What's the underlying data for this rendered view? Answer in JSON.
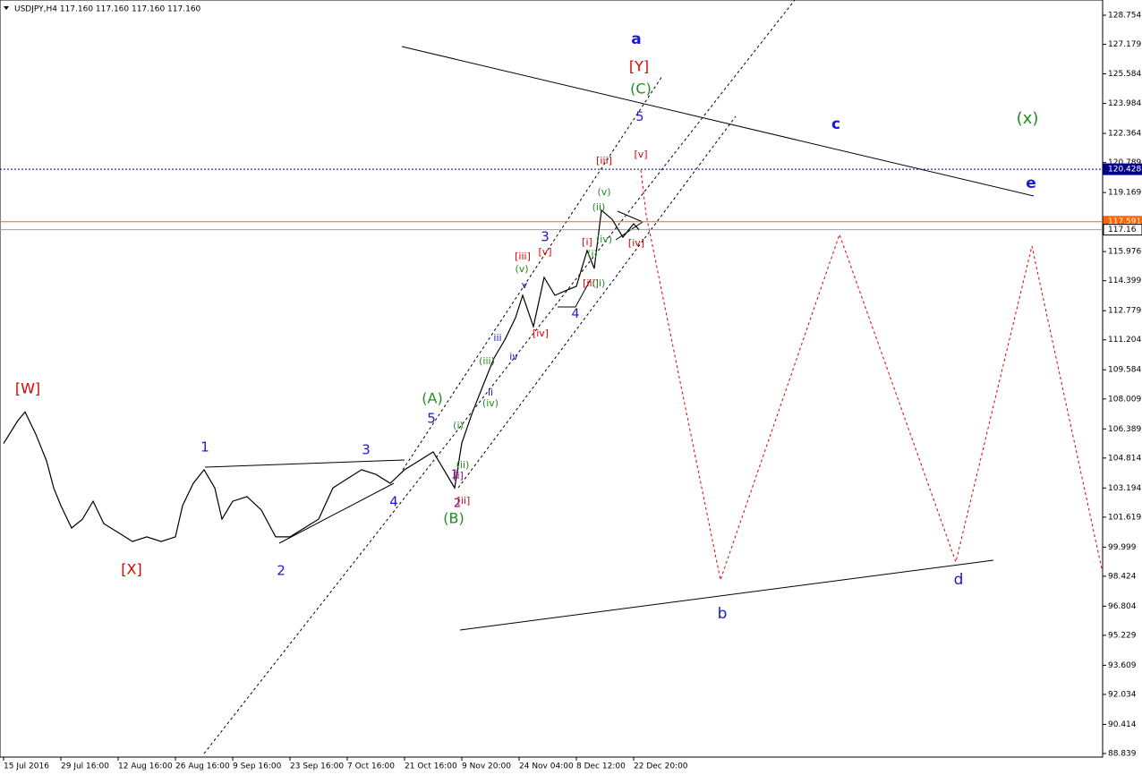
{
  "chart_data": {
    "type": "line",
    "title": "USDJPY,H4  117.160 117.160 117.160 117.160",
    "series": [
      {
        "name": "USDJPY",
        "color": "#000000",
        "x": [
          0,
          0.25,
          0.375,
          0.5625,
          0.75,
          0.875,
          1,
          1.1875,
          1.375,
          1.5625,
          1.75,
          2,
          2.25,
          2.5,
          2.75,
          3,
          3.125,
          3.3125,
          3.5,
          3.6875,
          3.8125,
          4,
          4.25,
          4.5,
          4.75,
          5,
          5.25,
          5.5,
          5.75,
          6,
          6.25,
          6.5,
          6.75,
          7,
          7.25,
          7.5,
          7.6875,
          7.875,
          8,
          8.1875,
          8.375,
          8.5625,
          8.75,
          8.9375,
          9.0625,
          9.25,
          9.4375,
          9.625,
          9.8125,
          10,
          10.1875,
          10.3125,
          10.4375,
          10.625,
          10.8125,
          11,
          11.09375
        ],
        "values": [
          105.6,
          106.84,
          107.3,
          106.1,
          104.66,
          103.2,
          102.24,
          101.03,
          101.5,
          102.48,
          101.27,
          100.79,
          100.3,
          100.55,
          100.3,
          100.55,
          102.24,
          103.45,
          104.18,
          103.2,
          101.51,
          102.48,
          102.73,
          102.0,
          100.55,
          100.55,
          101.03,
          101.51,
          103.2,
          103.69,
          104.18,
          103.93,
          103.45,
          104.18,
          104.66,
          105.15,
          104.18,
          103.2,
          105.63,
          107.3,
          108.77,
          110.22,
          111.2,
          112.4,
          113.61,
          111.92,
          114.58,
          113.61,
          113.86,
          114.1,
          116.03,
          115.06,
          118.21,
          117.72,
          116.75,
          117.48,
          117.16
        ]
      }
    ],
    "xlim": [
      -0.0625,
      19.1875
    ],
    "xticks": [
      {
        "value": 0,
        "label": "15 Jul 2016"
      },
      {
        "value": 1,
        "label": "29 Jul 16:00"
      },
      {
        "value": 2,
        "label": "12 Aug 16:00"
      },
      {
        "value": 3,
        "label": "26 Aug 16:00"
      },
      {
        "value": 4,
        "label": "9 Sep 16:00"
      },
      {
        "value": 5,
        "label": "23 Sep 16:00"
      },
      {
        "value": 6,
        "label": "7 Oct 16:00"
      },
      {
        "value": 7,
        "label": "21 Oct 16:00"
      },
      {
        "value": 8,
        "label": "9 Nov 20:00"
      },
      {
        "value": 9,
        "label": "24 Nov 04:00"
      },
      {
        "value": 10,
        "label": "8 Dec 12:00"
      },
      {
        "value": 11,
        "label": "22 Dec 20:00"
      }
    ],
    "ylim": [
      88.645,
      129.577
    ],
    "yticks": [
      128.754,
      127.179,
      125.584,
      123.984,
      122.364,
      120.789,
      119.169,
      115.976,
      114.399,
      112.779,
      111.204,
      109.584,
      108.009,
      106.389,
      104.814,
      103.194,
      101.619,
      99.999,
      98.424,
      96.804,
      95.229,
      93.609,
      92.034,
      90.414,
      88.839
    ],
    "hlines": [
      {
        "value": 120.428,
        "color": "#00008b"
      },
      {
        "value": 117.591,
        "color": "#ff6600"
      },
      {
        "value": 117.16,
        "color": "#a0a0a0"
      }
    ],
    "annotations": [
      {
        "text": "[W]",
        "color": "#e00000"
      },
      {
        "text": "[X]",
        "color": "#e00000"
      },
      {
        "text": "[Y]",
        "color": "#e00000"
      },
      {
        "text": "1",
        "color": "#1a1acc"
      },
      {
        "text": "2",
        "color": "#1a1acc"
      },
      {
        "text": "3",
        "color": "#1a1acc"
      },
      {
        "text": "4",
        "color": "#1a1acc"
      },
      {
        "text": "5",
        "color": "#1a1acc"
      },
      {
        "text": "(A)",
        "color": "#228b22"
      },
      {
        "text": "(B)",
        "color": "#228b22"
      },
      {
        "text": "a",
        "color": "#1a1acc"
      },
      {
        "text": "(C)",
        "color": "#228b22"
      },
      {
        "text": "5",
        "color": "#1a1acc"
      },
      {
        "text": "c",
        "color": "#1a1acc"
      },
      {
        "text": "(x)",
        "color": "#228b22"
      },
      {
        "text": "e",
        "color": "#1a1acc"
      },
      {
        "text": "b",
        "color": "#1a1acc"
      },
      {
        "text": "d",
        "color": "#1a1acc"
      },
      {
        "text": "3",
        "color": "#1a1acc"
      },
      {
        "text": "4",
        "color": "#1a1acc"
      },
      {
        "text": "[iii]",
        "color": "#e00000"
      },
      {
        "text": "[v]",
        "color": "#e00000"
      },
      {
        "text": "[iv]",
        "color": "#e00000"
      },
      {
        "text": "[iii]",
        "color": "#e00000"
      },
      {
        "text": "[v]",
        "color": "#e00000"
      },
      {
        "text": "[iv]",
        "color": "#e00000"
      },
      {
        "text": "[i]",
        "color": "#e00000"
      },
      {
        "text": "[ii]",
        "color": "#e00000"
      },
      {
        "text": "[i]",
        "color": "#8b008b"
      },
      {
        "text": "1",
        "color": "#8b008b"
      },
      {
        "text": "2",
        "color": "#8b008b"
      },
      {
        "text": "(i)",
        "color": "#228b22"
      },
      {
        "text": "(ii)",
        "color": "#228b22"
      },
      {
        "text": "(iii)",
        "color": "#228b22"
      },
      {
        "text": "(iv)",
        "color": "#228b22"
      },
      {
        "text": "(v)",
        "color": "#228b22"
      },
      {
        "text": "(v)",
        "color": "#228b22"
      },
      {
        "text": "(ii)",
        "color": "#228b22"
      },
      {
        "text": "(iv)",
        "color": "#228b22"
      },
      {
        "text": "(i)",
        "color": "#228b22"
      },
      {
        "text": "[iii]",
        "color": "#e00000"
      },
      {
        "text": "(ii)",
        "color": "#228b22"
      },
      {
        "text": "iii",
        "color": "#1a1acc"
      },
      {
        "text": "iv",
        "color": "#1a1acc"
      },
      {
        "text": "v",
        "color": "#1a1acc"
      },
      {
        "text": "ii",
        "color": "#1a1acc"
      }
    ]
  }
}
